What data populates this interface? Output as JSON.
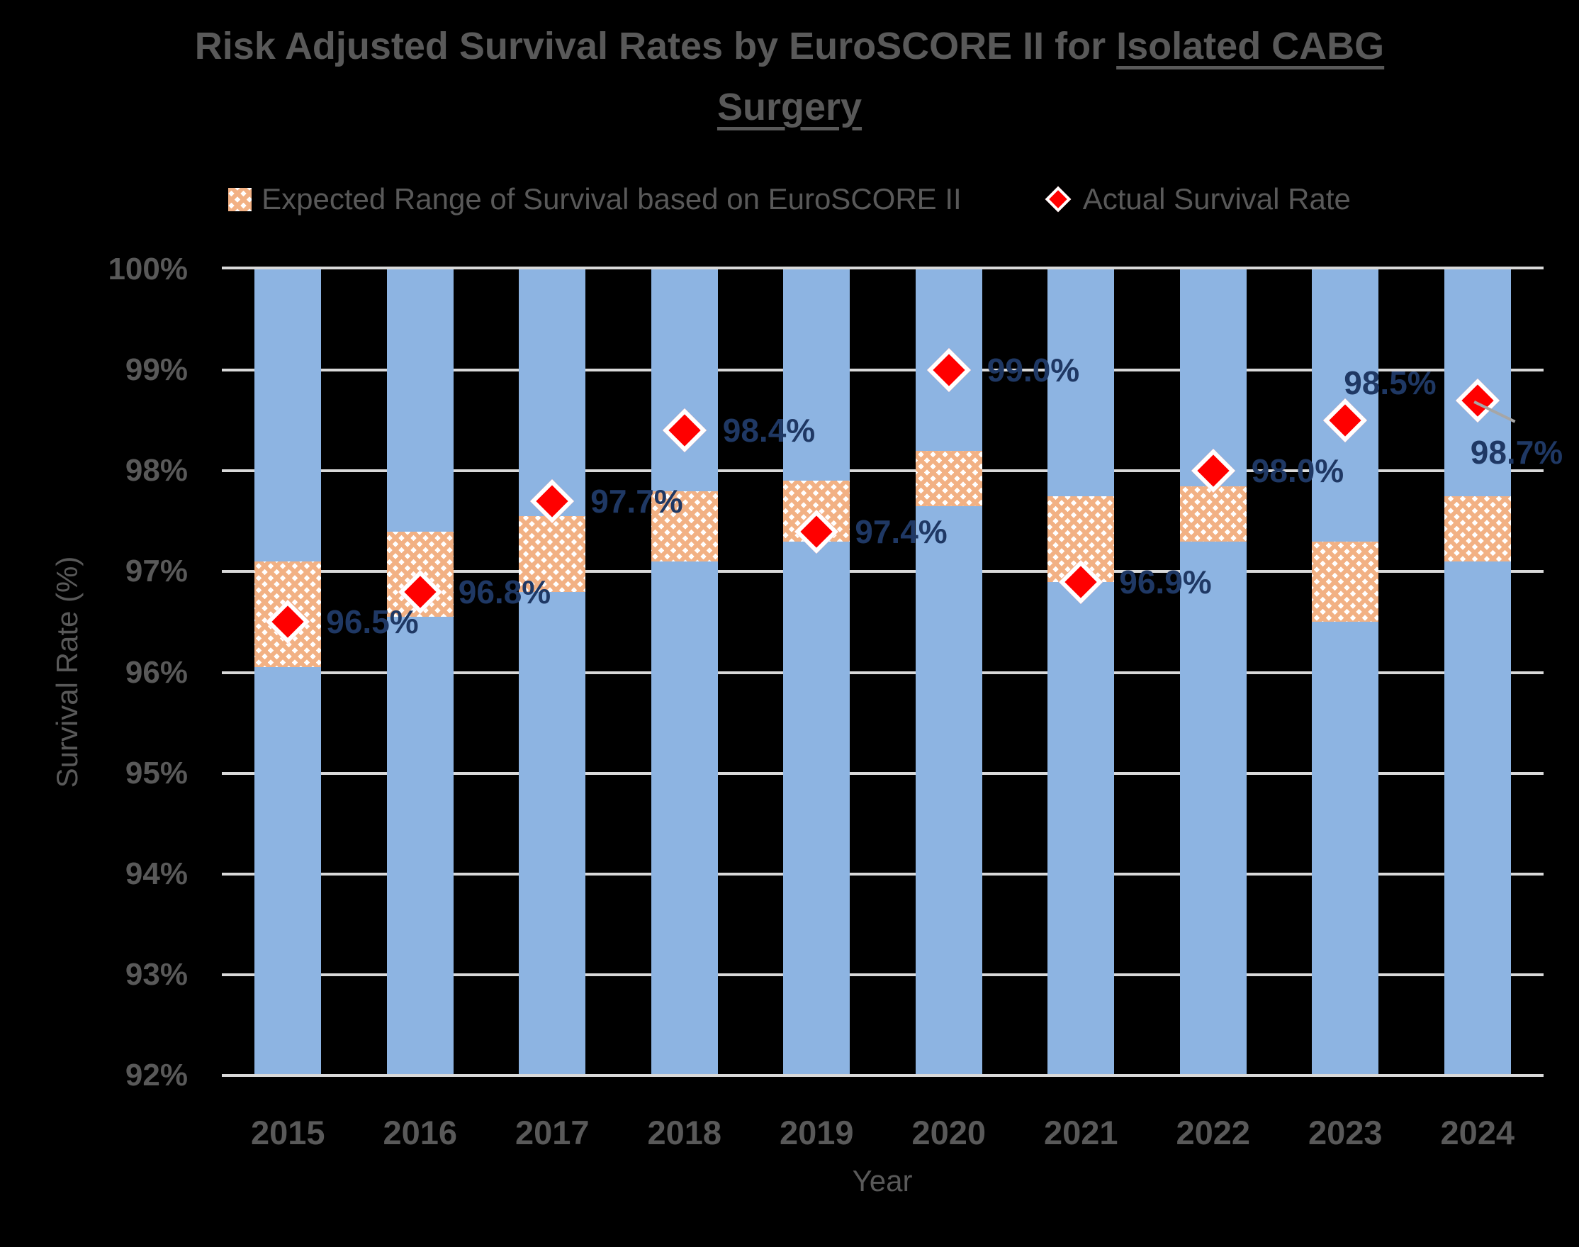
{
  "title": {
    "text_before": "Risk Adjusted Survival Rates by EuroSCORE II for ",
    "underlined_line1": "Isolated CABG",
    "underlined_line2": "Surgery"
  },
  "legend": [
    {
      "label": "Expected Range of Survival based on EuroSCORE II",
      "swatch": "peach-hatch-square"
    },
    {
      "label": "Actual Survival Rate",
      "swatch": "red-diamond"
    }
  ],
  "y_axis": {
    "title": "Survival Rate (%)",
    "ticks": [
      "100%",
      "99%",
      "98%",
      "97%",
      "96%",
      "95%",
      "94%",
      "93%",
      "92%"
    ]
  },
  "x_axis": {
    "title": "Year"
  },
  "colors": {
    "background": "#000000",
    "bar_blue": "#8DB4E2",
    "range_peach": "#F2B184",
    "marker_red": "#FF0000",
    "marker_outline": "#FFFFFF",
    "label_navy": "#1F3864",
    "text_gray": "#595959",
    "gridline": "#D9D9D9",
    "leader_line": "#A6A6A6"
  },
  "chart_data": {
    "type": "combo",
    "title": "Risk Adjusted Survival Rates by EuroSCORE II for Isolated CABG Surgery",
    "xlabel": "Year",
    "ylabel": "Survival Rate (%)",
    "ylim": [
      92,
      100
    ],
    "y_tick_step": 1,
    "y_tick_format": "percent",
    "grid": "horizontal",
    "legend_position": "top",
    "categories": [
      "2015",
      "2016",
      "2017",
      "2018",
      "2019",
      "2020",
      "2021",
      "2022",
      "2023",
      "2024"
    ],
    "series": [
      {
        "name": "Background columns",
        "type": "bar",
        "role": "background",
        "span": [
          92,
          100
        ],
        "note": "full-height light blue column behind every category"
      },
      {
        "name": "Expected Range of Survival based on EuroSCORE II",
        "type": "floating-bar",
        "ranges": [
          [
            96.05,
            97.1
          ],
          [
            96.55,
            97.4
          ],
          [
            96.8,
            97.55
          ],
          [
            97.1,
            97.8
          ],
          [
            97.3,
            97.9
          ],
          [
            97.65,
            98.2
          ],
          [
            96.9,
            97.75
          ],
          [
            97.3,
            97.85
          ],
          [
            96.5,
            97.3
          ],
          [
            97.1,
            97.75
          ]
        ]
      },
      {
        "name": "Actual Survival Rate",
        "type": "scatter",
        "marker": "diamond",
        "values": [
          96.5,
          96.8,
          97.7,
          98.4,
          97.4,
          99.0,
          96.9,
          98.0,
          98.5,
          98.7
        ],
        "labels": [
          "96.5%",
          "96.8%",
          "97.7%",
          "98.4%",
          "97.4%",
          "99.0%",
          "96.9%",
          "98.0%",
          "98.5%",
          "98.7%"
        ],
        "label_positions": [
          "right",
          "right",
          "right",
          "right",
          "right",
          "right",
          "right",
          "right",
          "above-right",
          "below-right-leader"
        ]
      }
    ]
  }
}
